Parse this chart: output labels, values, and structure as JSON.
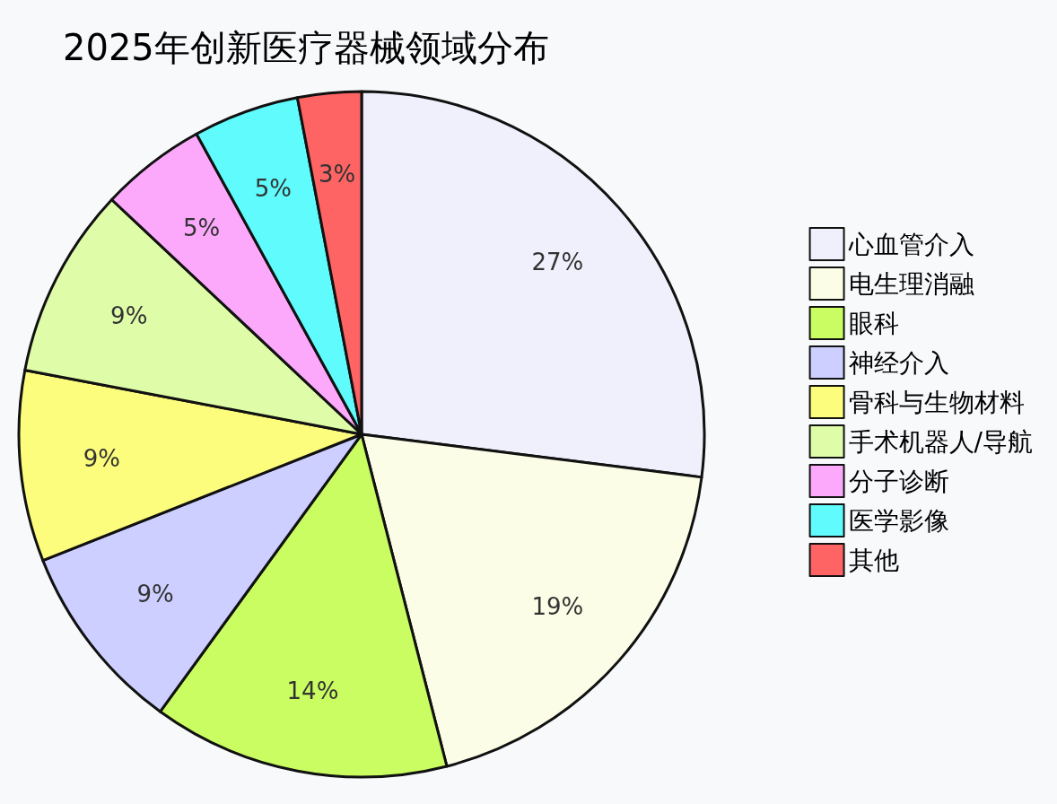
{
  "chart_data": {
    "type": "pie",
    "title": "2025年创新医疗器械领域分布",
    "categories": [
      "心血管介入",
      "电生理消融",
      "眼科",
      "神经介入",
      "骨科与生物材料",
      "手术机器人/导航",
      "分子诊断",
      "医学影像",
      "其他"
    ],
    "values": [
      27,
      19,
      14,
      9,
      9,
      9,
      5,
      5,
      3
    ],
    "colors": [
      "#f0f0fd",
      "#fbfde6",
      "#c9fd61",
      "#cccfff",
      "#fdfd7d",
      "#dffca8",
      "#fca9fc",
      "#60fcfd",
      "#fe6464"
    ],
    "value_labels": [
      "27%",
      "19%",
      "14%",
      "9%",
      "9%",
      "9%",
      "5%",
      "5%",
      "3%"
    ],
    "legend": "right"
  }
}
